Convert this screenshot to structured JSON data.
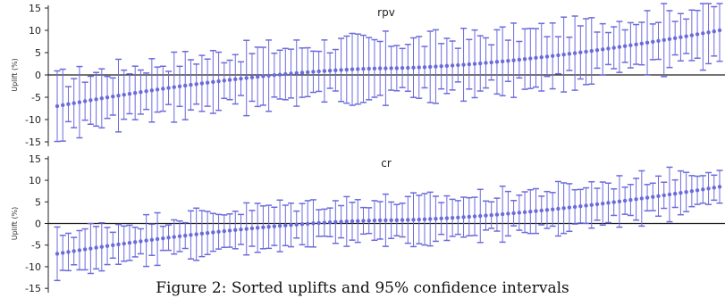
{
  "chart_data": [
    {
      "type": "errorbar",
      "title": "rpv",
      "ylabel": "Uplift (%)",
      "ylim": [
        -16,
        16
      ],
      "yticks": [
        -15,
        -10,
        -5,
        0,
        5,
        10,
        15
      ],
      "n_points": 120,
      "point_start": -7,
      "point_end": 10,
      "error_halfwidth": 6.5,
      "color": "#6b6bdc",
      "zero_line": true
    },
    {
      "type": "errorbar",
      "title": "cr",
      "ylabel": "Uplift (%)",
      "ylim": [
        -16,
        16
      ],
      "yticks": [
        -15,
        -10,
        -5,
        0,
        5,
        10,
        15
      ],
      "n_points": 120,
      "point_start": -7,
      "point_end": 8.5,
      "error_halfwidth": 5,
      "color": "#6b6bdc",
      "zero_line": true
    }
  ],
  "caption": "Figure 2: Sorted uplifts and 95% confidence intervals"
}
